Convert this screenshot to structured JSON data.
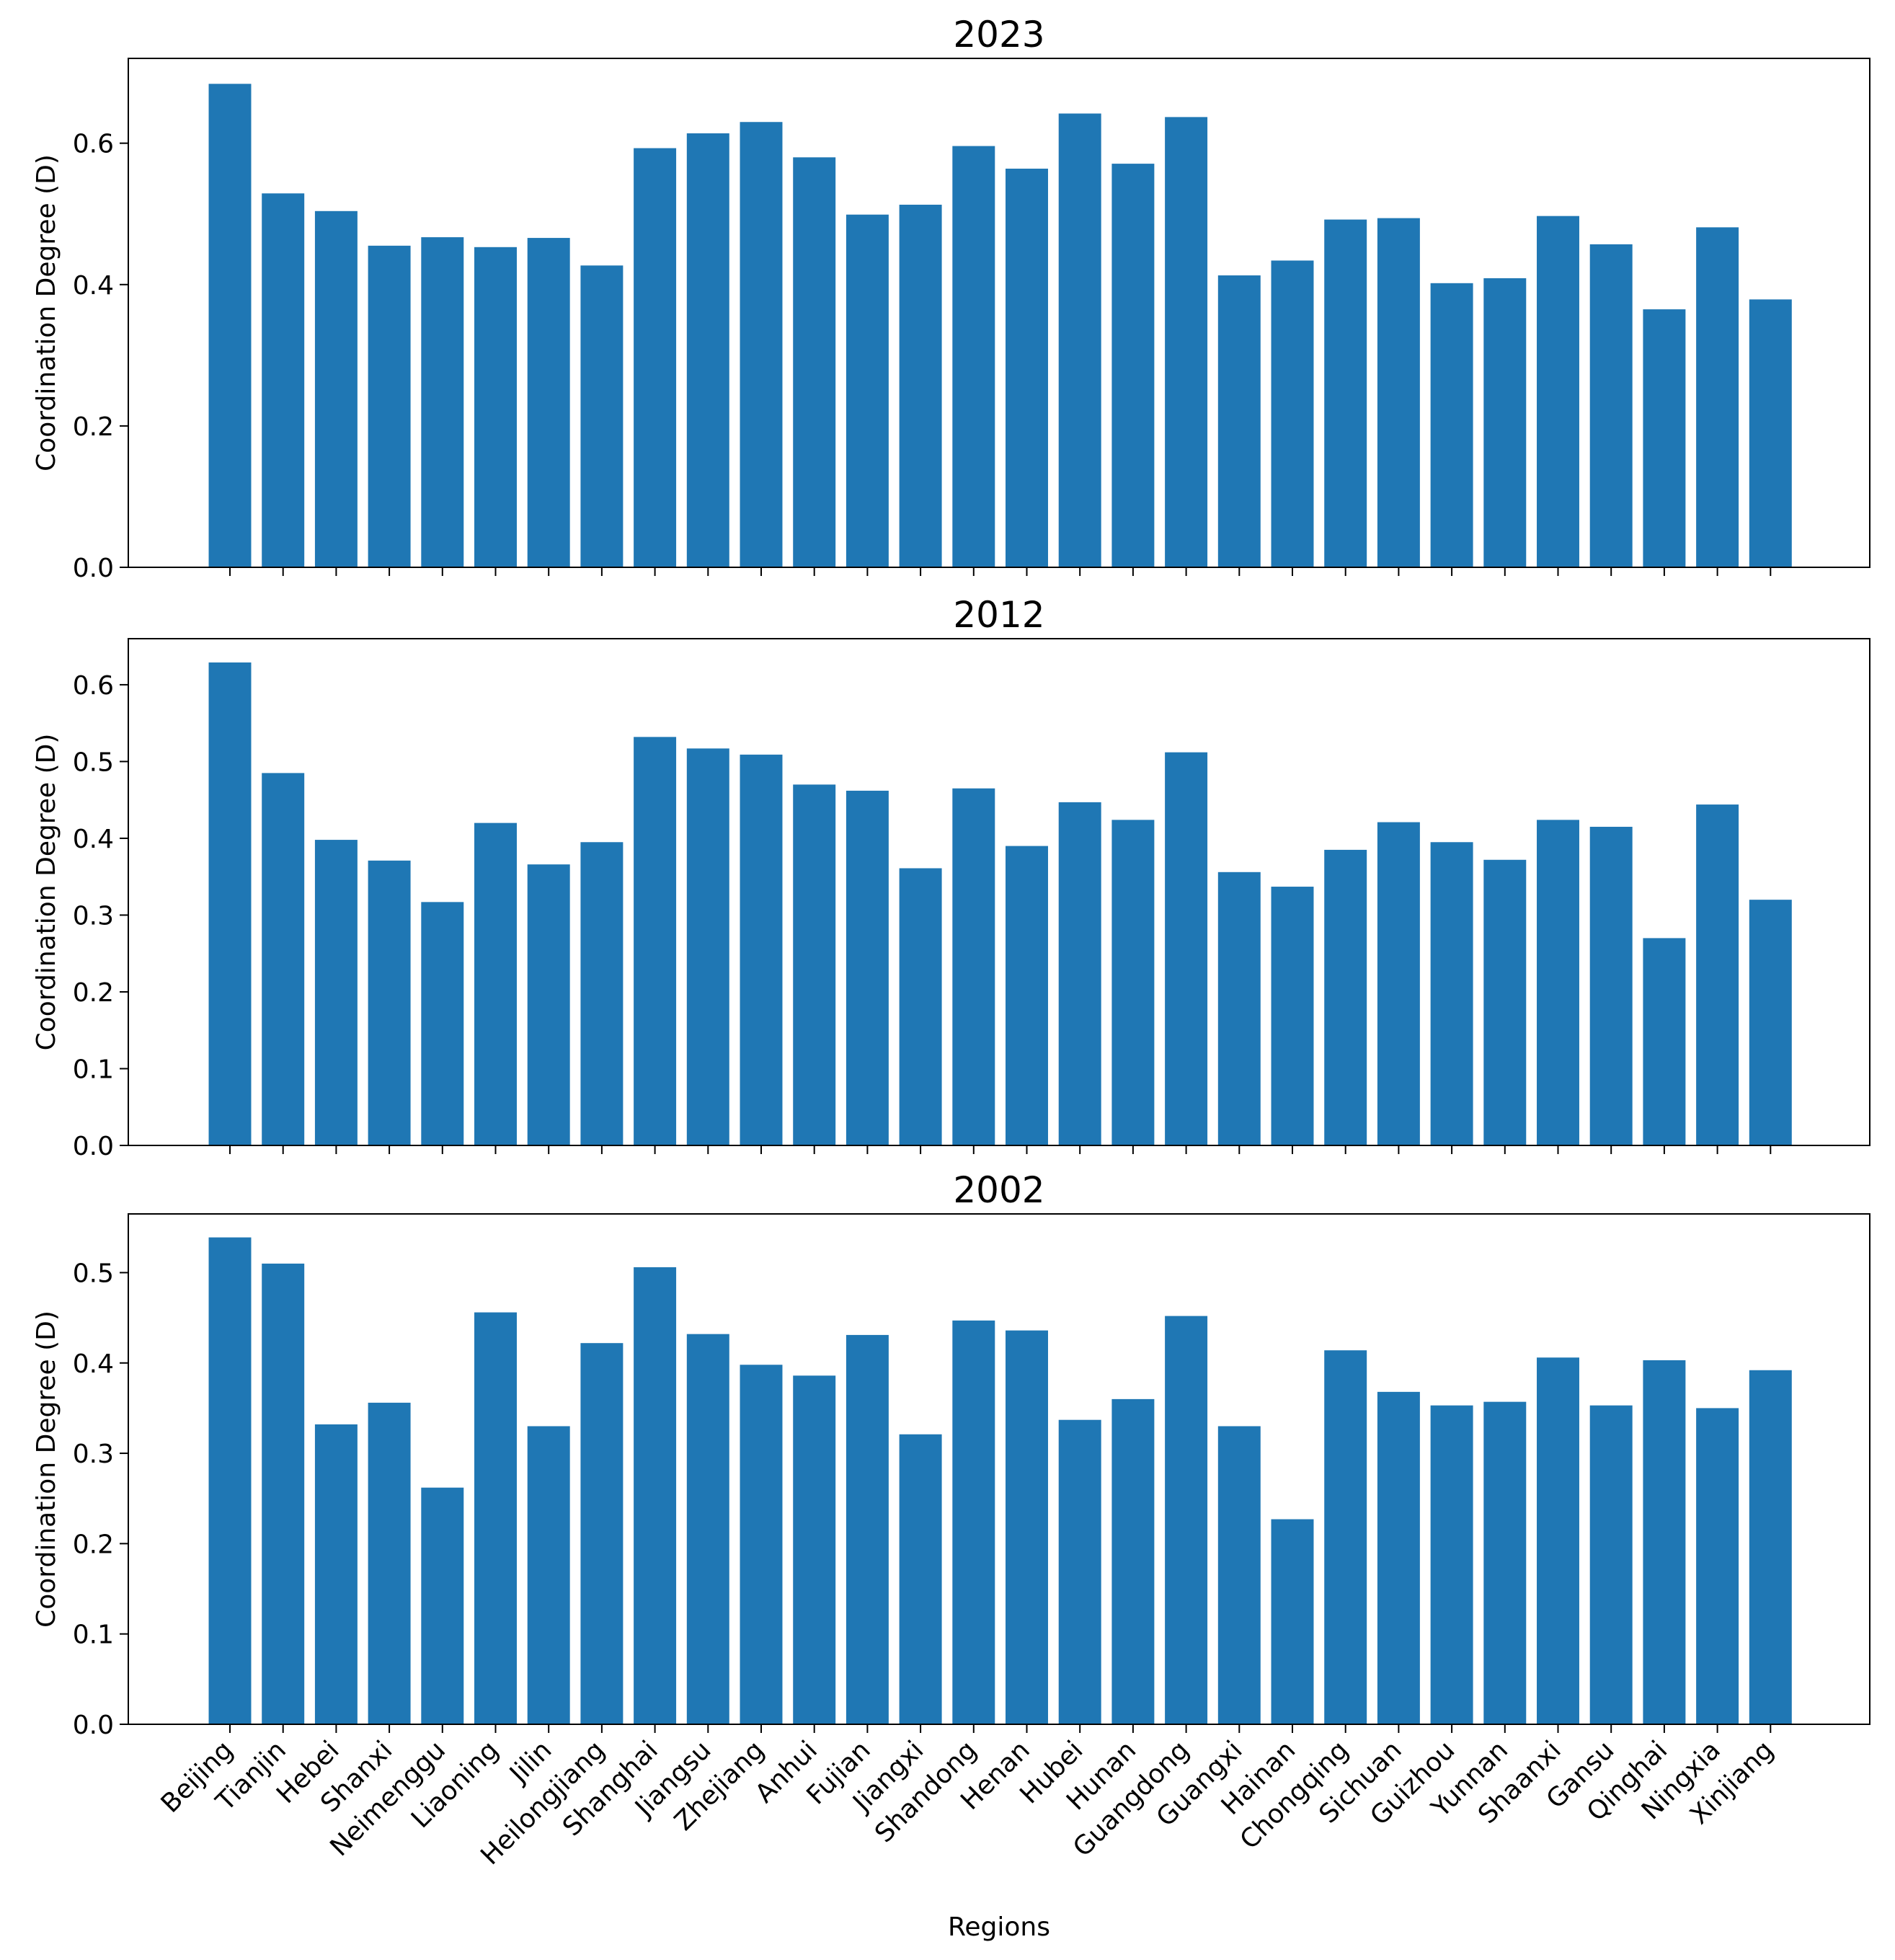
{
  "chart_data": [
    {
      "type": "bar",
      "title": "2023",
      "ylabel": "Coordination Degree (D)",
      "color": "#1f77b4",
      "values": [
        0.684,
        0.529,
        0.504,
        0.455,
        0.467,
        0.453,
        0.466,
        0.427,
        0.593,
        0.614,
        0.63,
        0.58,
        0.499,
        0.513,
        0.596,
        0.564,
        0.642,
        0.571,
        0.637,
        0.413,
        0.434,
        0.492,
        0.494,
        0.402,
        0.409,
        0.497,
        0.457,
        0.365,
        0.481,
        0.379
      ],
      "ylim": [
        0,
        0.72
      ],
      "yticks": [
        {
          "value": 0,
          "label": "0.0"
        },
        0.2,
        0.4,
        0.6
      ]
    },
    {
      "type": "bar",
      "title": "2012",
      "ylabel": "Coordination Degree (D)",
      "color": "#1f77b4",
      "values": [
        0.629,
        0.485,
        0.398,
        0.371,
        0.317,
        0.42,
        0.366,
        0.395,
        0.532,
        0.517,
        0.509,
        0.47,
        0.462,
        0.361,
        0.465,
        0.39,
        0.447,
        0.424,
        0.512,
        0.356,
        0.337,
        0.385,
        0.421,
        0.395,
        0.372,
        0.424,
        0.415,
        0.27,
        0.444,
        0.32
      ],
      "ylim": [
        0,
        0.66
      ],
      "yticks": [
        {
          "value": 0,
          "label": "0.0"
        },
        0.1,
        0.2,
        0.3,
        0.4,
        0.5,
        0.6
      ]
    },
    {
      "type": "bar",
      "title": "2002",
      "ylabel": "Coordination Degree (D)",
      "xlabel": "Regions",
      "color": "#1f77b4",
      "categories": [
        "Beijing",
        "Tianjin",
        "Hebei",
        "Shanxi",
        "Neimenggu",
        "Liaoning",
        "Jilin",
        "Heilongjiang",
        "Shanghai",
        "Jiangsu",
        "Zhejiang",
        "Anhui",
        "Fujian",
        "Jiangxi",
        "Shandong",
        "Henan",
        "Hubei",
        "Hunan",
        "Guangdong",
        "Guangxi",
        "Hainan",
        "Chongqing",
        "Sichuan",
        "Guizhou",
        "Yunnan",
        "Shaanxi",
        "Gansu",
        "Qinghai",
        "Ningxia",
        "Xinjiang"
      ],
      "values": [
        0.539,
        0.51,
        0.332,
        0.356,
        0.262,
        0.456,
        0.33,
        0.422,
        0.506,
        0.432,
        0.398,
        0.386,
        0.431,
        0.321,
        0.447,
        0.436,
        0.337,
        0.36,
        0.452,
        0.33,
        0.227,
        0.414,
        0.368,
        0.353,
        0.357,
        0.406,
        0.353,
        0.403,
        0.35,
        0.392
      ],
      "ylim": [
        0,
        0.565
      ],
      "yticks": [
        {
          "value": 0,
          "label": "0.0"
        },
        0.1,
        0.2,
        0.3,
        0.4,
        0.5
      ]
    }
  ]
}
